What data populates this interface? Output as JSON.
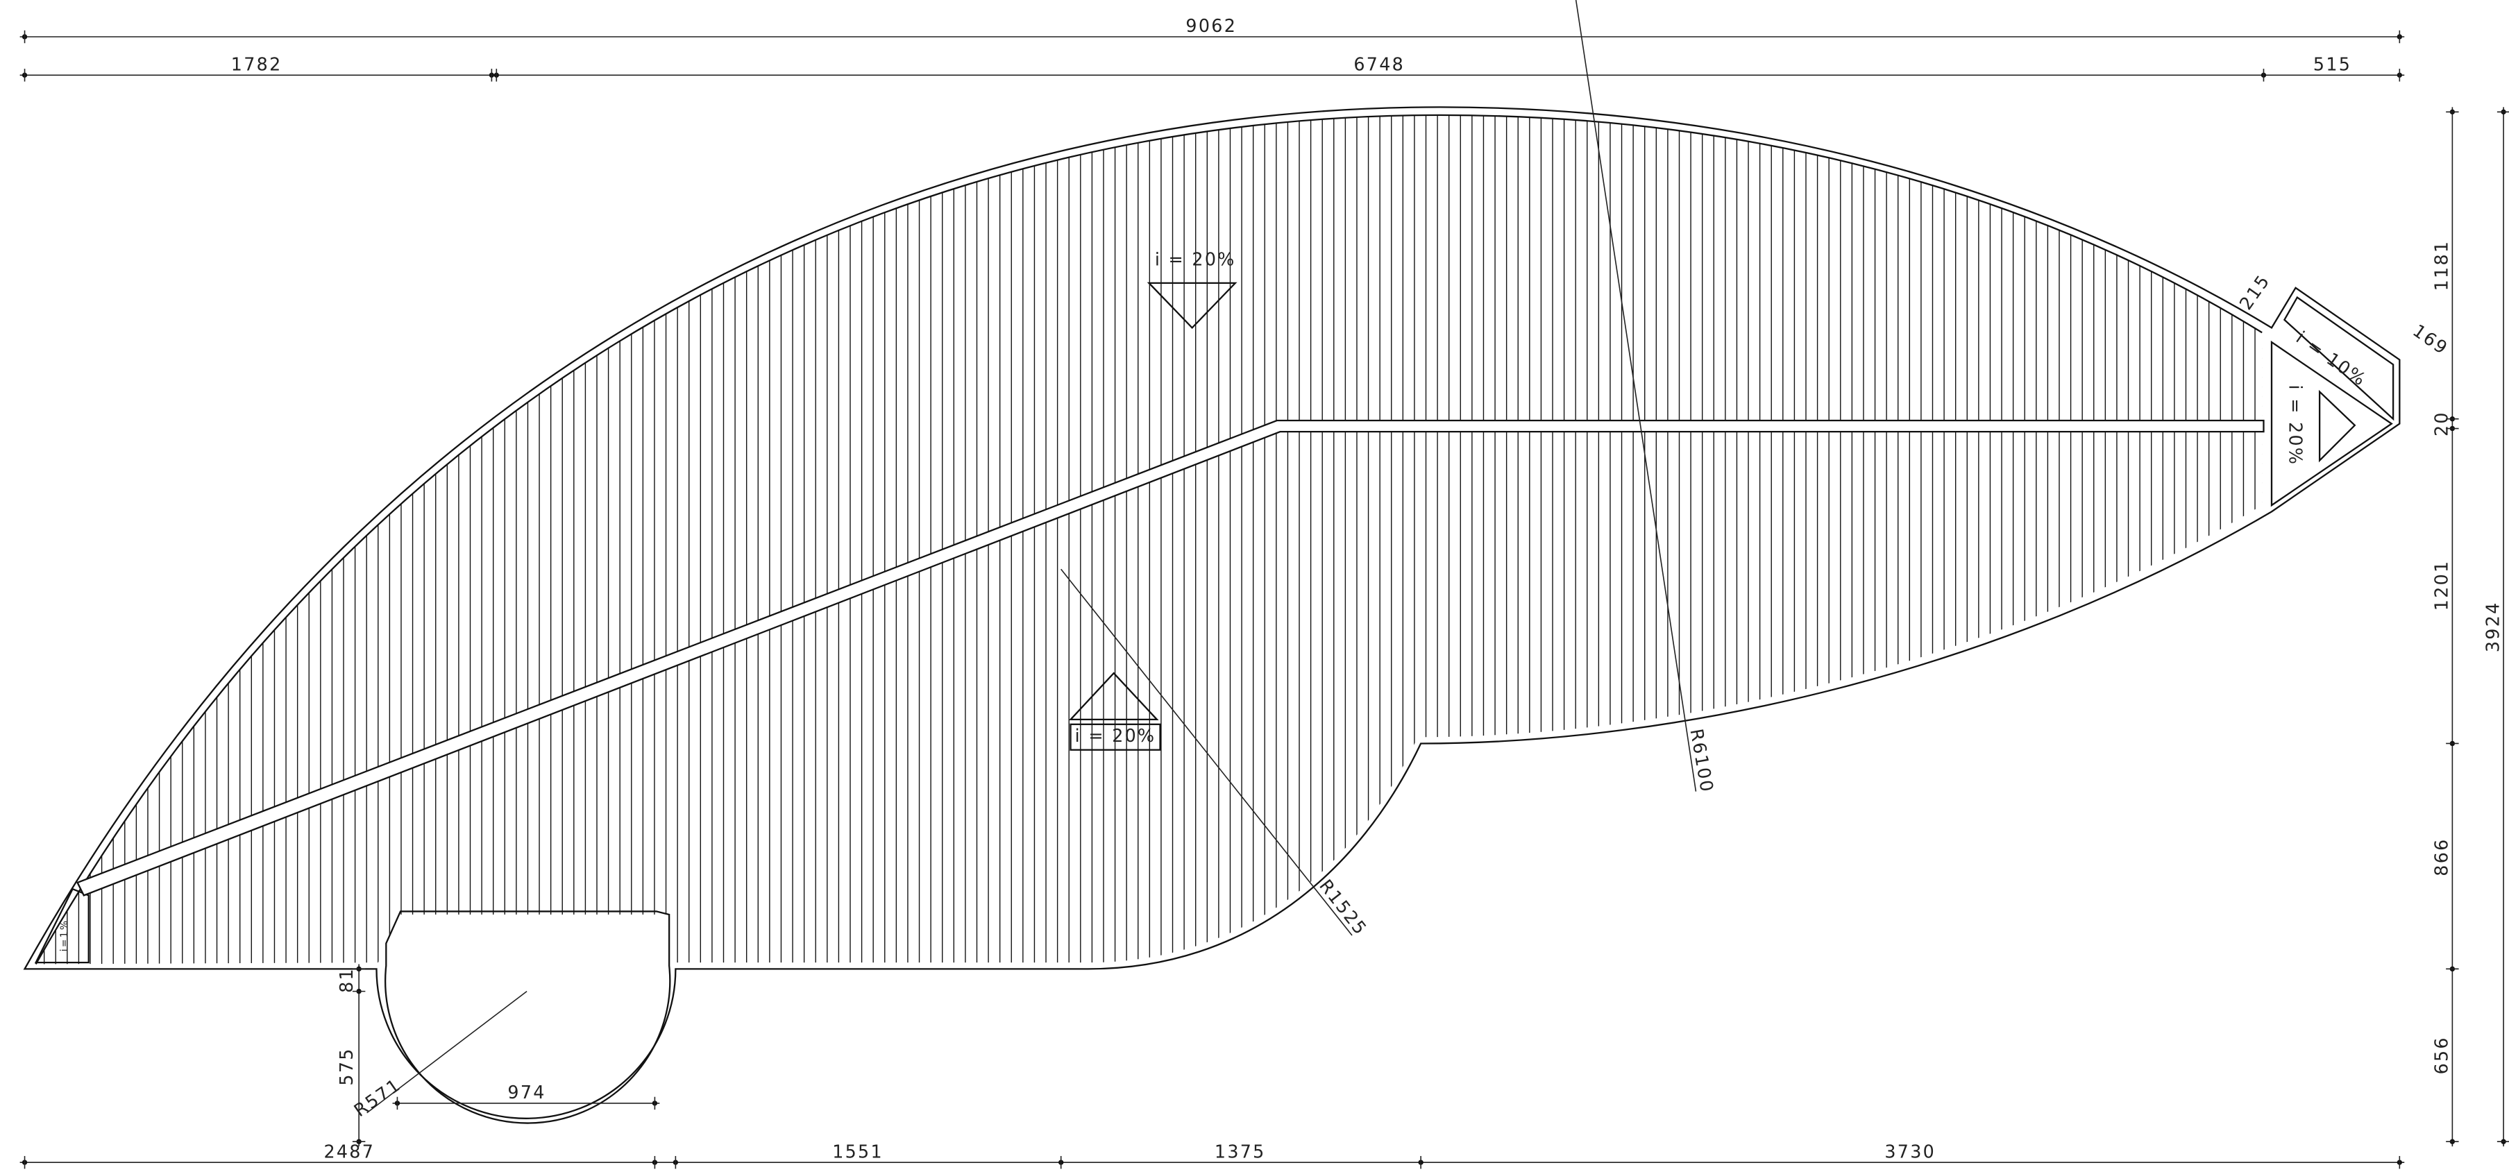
{
  "dimensions": {
    "overall_top": "9062",
    "top": [
      "1782",
      "6748",
      "515"
    ],
    "bottom": [
      "2487",
      "1551",
      "1375",
      "3730"
    ],
    "right": [
      "1181",
      "20",
      "1201",
      "866",
      "656"
    ],
    "overall_right": "3924",
    "circle_width": "974",
    "circle_offset": "575",
    "small_offset": "81",
    "corner_a": "215",
    "corner_b": "169"
  },
  "radii": [
    "R571",
    "R1525",
    "R6100"
  ],
  "slopes": {
    "upper": "i = 20%",
    "lower": "i = 20%",
    "right_vertical": "i = 20%",
    "right_top": "i = 10%",
    "left_small": "i=1%"
  }
}
